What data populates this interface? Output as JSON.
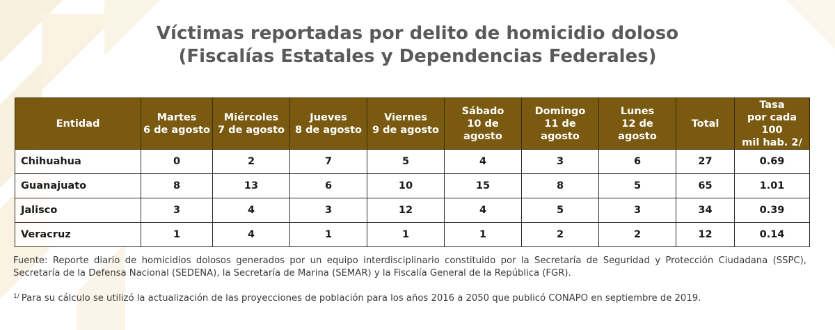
{
  "title": {
    "line1": "Víctimas reportadas por delito de homicidio doloso",
    "line2": "(Fiscalías Estatales y Dependencias Federales)"
  },
  "table": {
    "headers": [
      {
        "line1": "Entidad",
        "line2": ""
      },
      {
        "line1": "Martes",
        "line2": "6 de agosto"
      },
      {
        "line1": "Miércoles",
        "line2": "7 de agosto"
      },
      {
        "line1": "Jueves",
        "line2": "8 de agosto"
      },
      {
        "line1": "Viernes",
        "line2": "9 de agosto"
      },
      {
        "line1": "Sábado",
        "line2": "10 de agosto"
      },
      {
        "line1": "Domingo",
        "line2": "11 de agosto"
      },
      {
        "line1": "Lunes",
        "line2": "12 de agosto"
      },
      {
        "line1": "Total",
        "line2": ""
      },
      {
        "line1": "Tasa",
        "line2": "por cada 100",
        "line3": "mil hab. 2/"
      }
    ],
    "rows": [
      [
        "Chihuahua",
        "0",
        "2",
        "7",
        "5",
        "4",
        "3",
        "6",
        "27",
        "0.69"
      ],
      [
        "Guanajuato",
        "8",
        "13",
        "6",
        "10",
        "15",
        "8",
        "5",
        "65",
        "1.01"
      ],
      [
        "Jalisco",
        "3",
        "4",
        "3",
        "12",
        "4",
        "5",
        "3",
        "34",
        "0.39"
      ],
      [
        "Veracruz",
        "1",
        "4",
        "1",
        "1",
        "1",
        "2",
        "2",
        "12",
        "0.14"
      ]
    ]
  },
  "source": "Fuente: Reporte diario de homicidios dolosos generados por un equipo interdisciplinario constituido por la Secretaría de Seguridad y Protección Ciudadana (SSPC), Secretaría de la Defensa Nacional (SEDENA), la Secretaría de Marina (SEMAR) y la Fiscalía General de la República (FGR).",
  "note": {
    "marker": "1/",
    "text": "Para su cálculo se utilizó la actualización de las proyecciones de población para los años 2016 a 2050 que publicó CONAPO en septiembre de 2019."
  },
  "colors": {
    "header_bg": "#7a5a10",
    "decoration": "#f7efdc"
  }
}
